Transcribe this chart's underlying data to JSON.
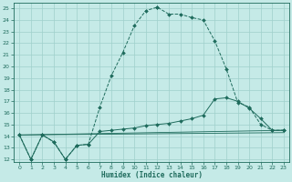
{
  "xlabel": "Humidex (Indice chaleur)",
  "xlim": [
    -0.5,
    23.5
  ],
  "ylim": [
    11.8,
    25.5
  ],
  "xticks": [
    0,
    1,
    2,
    3,
    4,
    5,
    6,
    7,
    8,
    9,
    10,
    11,
    12,
    13,
    14,
    15,
    16,
    17,
    18,
    19,
    20,
    21,
    22,
    23
  ],
  "yticks": [
    12,
    13,
    14,
    15,
    16,
    17,
    18,
    19,
    20,
    21,
    22,
    23,
    24,
    25
  ],
  "background_color": "#c5eae7",
  "grid_color": "#9fd0cb",
  "line_color": "#1e6b5c",
  "curve1_x": [
    0,
    1,
    2,
    3,
    4,
    5,
    6,
    7,
    8,
    9,
    10,
    11,
    12,
    12,
    13,
    14,
    15,
    16,
    17,
    18,
    19,
    20,
    21,
    22,
    23
  ],
  "curve1_y": [
    14.1,
    12.0,
    14.1,
    13.5,
    12.0,
    13.2,
    13.3,
    16.5,
    19.2,
    21.2,
    23.5,
    24.8,
    25.1,
    25.1,
    24.5,
    24.5,
    24.2,
    24.0,
    22.2,
    19.8,
    16.9,
    16.5,
    15.0,
    14.5,
    14.5
  ],
  "curve2_x": [
    0,
    1,
    2,
    3,
    4,
    5,
    6,
    7,
    8,
    9,
    10,
    11,
    12,
    13,
    14,
    15,
    16,
    17,
    18,
    19,
    20,
    21,
    22,
    23
  ],
  "curve2_y": [
    14.1,
    12.0,
    14.1,
    13.5,
    12.0,
    13.2,
    13.3,
    14.4,
    14.5,
    14.6,
    14.7,
    14.9,
    15.0,
    15.1,
    15.3,
    15.5,
    15.8,
    17.2,
    17.3,
    17.0,
    16.4,
    15.5,
    14.5,
    14.5
  ],
  "line3_x": [
    0,
    23
  ],
  "line3_y": [
    14.1,
    14.5
  ],
  "line4_x": [
    0,
    23
  ],
  "line4_y": [
    14.1,
    14.3
  ]
}
